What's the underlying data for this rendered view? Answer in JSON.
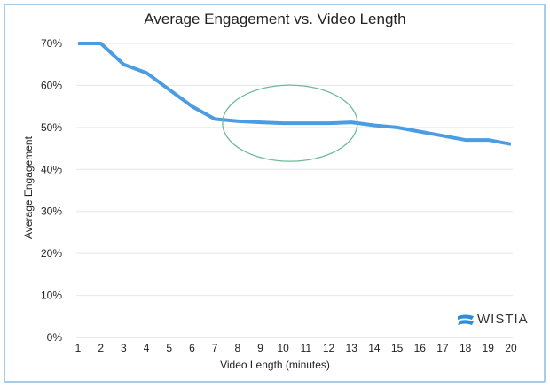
{
  "chart_data": {
    "type": "line",
    "title": "Average Engagement vs. Video Length",
    "xlabel": "Video Length (minutes)",
    "ylabel": "Average Engagement",
    "x": [
      1,
      2,
      3,
      4,
      5,
      6,
      7,
      8,
      9,
      10,
      11,
      12,
      13,
      14,
      15,
      16,
      17,
      18,
      19,
      20
    ],
    "series": [
      {
        "values": [
          70,
          70,
          65,
          63,
          59,
          55,
          52,
          51.5,
          51.2,
          51,
          51,
          51,
          51.2,
          50.5,
          50,
          49,
          48,
          47,
          47,
          46
        ],
        "color": "#4a9de2"
      }
    ],
    "ylim": [
      0,
      70
    ],
    "yticks": [
      "0%",
      "10%",
      "20%",
      "30%",
      "40%",
      "50%",
      "60%",
      "70%"
    ],
    "grid": true,
    "annotation": {
      "type": "ellipse",
      "center_x": 10.3,
      "center_y": 51,
      "color": "#6dbb96"
    }
  },
  "logo": {
    "text": "WISTIA",
    "color": "#2d8ed6"
  }
}
